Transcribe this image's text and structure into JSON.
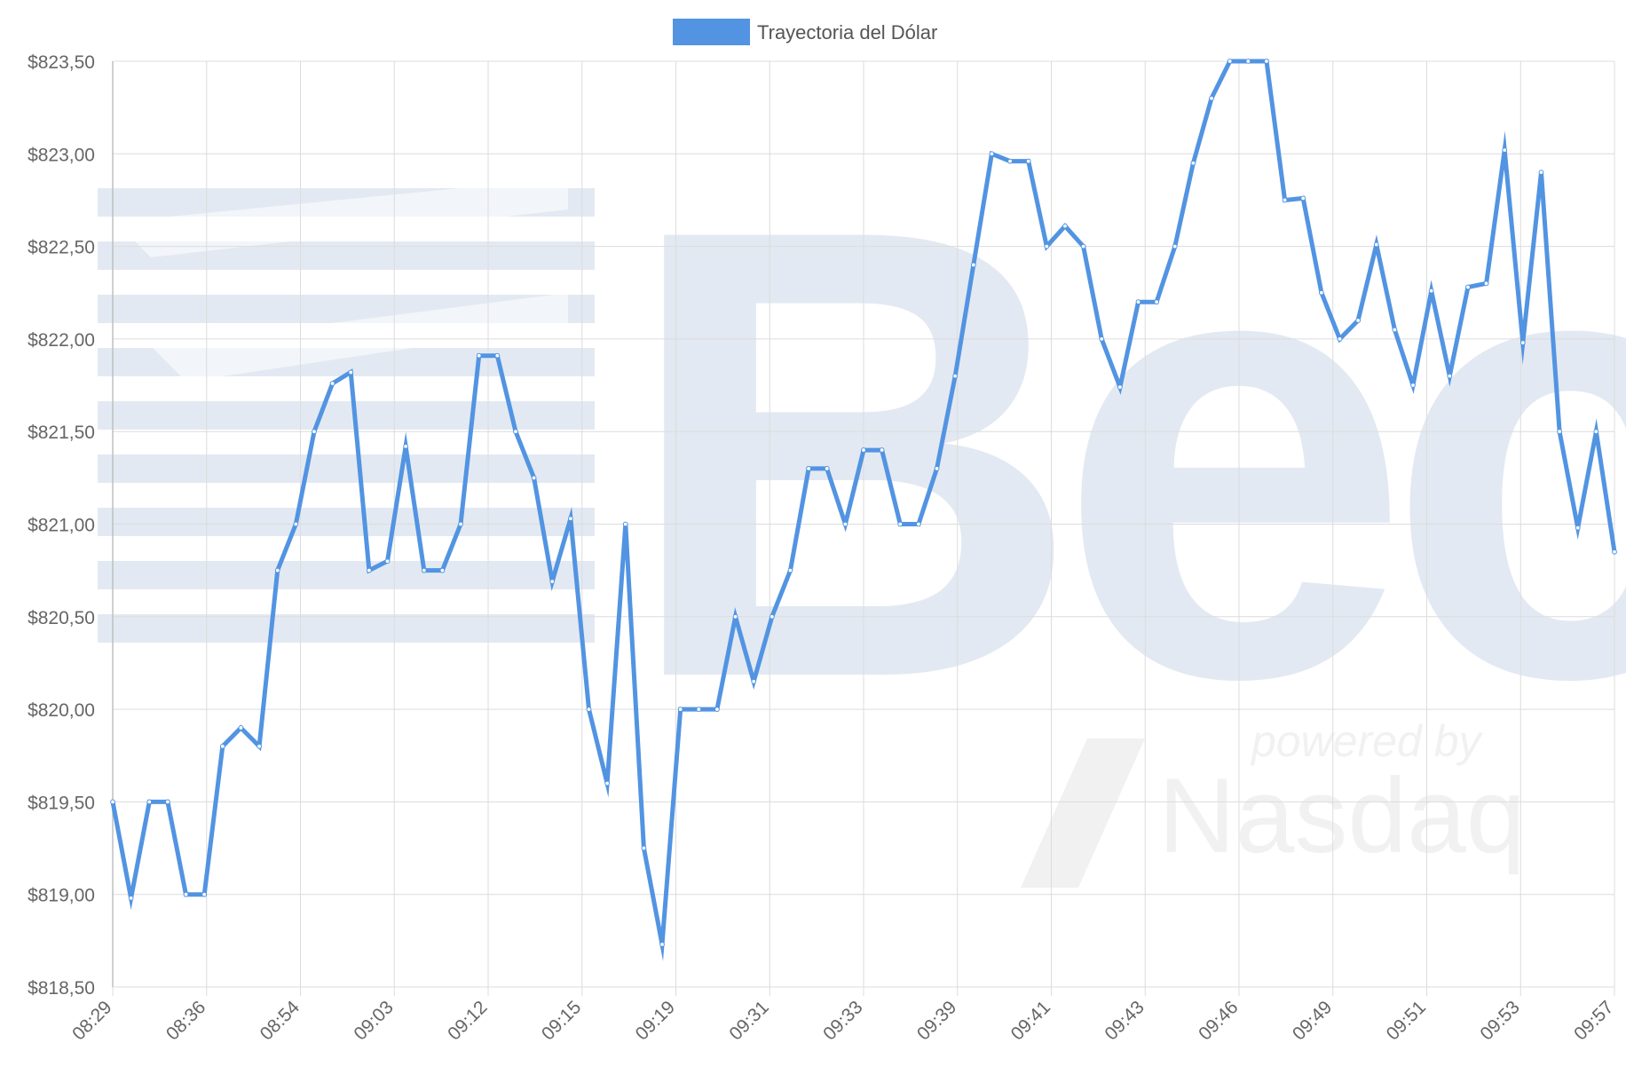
{
  "colors": {
    "line": "#5294e2",
    "grid": "#dcdcdc",
    "axis_text": "#666666",
    "legend_text": "#555555",
    "watermark": "#e3e9f2",
    "watermark_nasdaq": "#f1f1f1"
  },
  "watermark": {
    "logo_text": "Bec",
    "powered_text": "powered by",
    "nasdaq_text": "Nasdaq"
  },
  "chart_data": {
    "type": "line",
    "title": "",
    "xlabel": "",
    "ylabel": "",
    "legend": {
      "position": "top-center",
      "entries": [
        "Trayectoria del Dólar"
      ]
    },
    "grid": true,
    "ylim": [
      818.5,
      823.5
    ],
    "y_ticks": [
      "$818,50",
      "$819,00",
      "$819,50",
      "$820,00",
      "$820,50",
      "$821,00",
      "$821,50",
      "$822,00",
      "$822,50",
      "$823,00",
      "$823,50"
    ],
    "x_tick_labels": [
      "08:29",
      "08:36",
      "08:54",
      "09:03",
      "09:12",
      "09:15",
      "09:19",
      "09:31",
      "09:33",
      "09:39",
      "09:41",
      "09:43",
      "09:46",
      "09:49",
      "09:51",
      "09:53",
      "09:57"
    ],
    "series": [
      {
        "name": "Trayectoria del Dólar",
        "values": [
          819.5,
          818.98,
          819.5,
          819.5,
          819.0,
          819.0,
          819.8,
          819.9,
          819.8,
          820.75,
          821.0,
          821.5,
          821.76,
          821.82,
          820.75,
          820.8,
          821.42,
          820.75,
          820.75,
          821.0,
          821.91,
          821.91,
          821.5,
          821.25,
          820.69,
          821.03,
          820.0,
          819.6,
          821.0,
          819.25,
          818.73,
          820.0,
          820.0,
          820.0,
          820.5,
          820.15,
          820.5,
          820.75,
          821.3,
          821.3,
          821.0,
          821.4,
          821.4,
          821.0,
          821.0,
          821.3,
          821.8,
          822.4,
          823.0,
          822.96,
          822.96,
          822.5,
          822.61,
          822.5,
          822.0,
          821.74,
          822.2,
          822.2,
          822.5,
          822.95,
          823.3,
          823.5,
          823.5,
          823.5,
          822.75,
          822.76,
          822.25,
          822.0,
          822.1,
          822.51,
          822.05,
          821.75,
          822.26,
          821.8,
          822.28,
          822.3,
          823.02,
          821.98,
          822.9,
          821.5,
          820.98,
          821.5,
          820.85
        ]
      }
    ]
  }
}
